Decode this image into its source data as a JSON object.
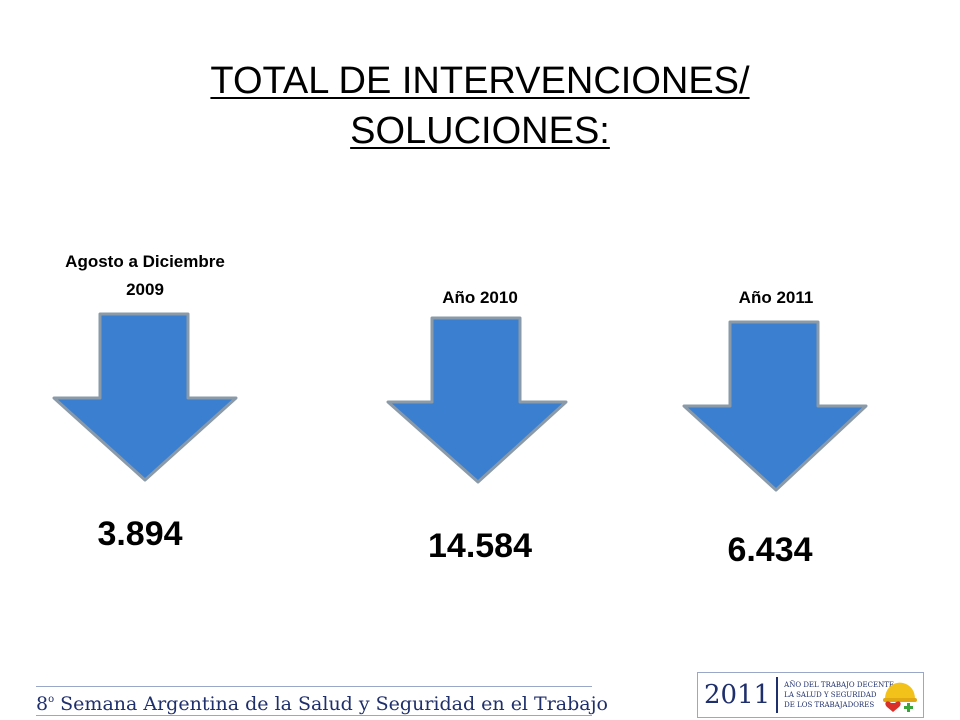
{
  "title": {
    "line1": "TOTAL DE INTERVENCIONES/",
    "line2": "SOLUCIONES:"
  },
  "columns": [
    {
      "period_line1": "Agosto a Diciembre",
      "period_line2": "2009",
      "value": "3.894",
      "arrow_color": "#3b7fd1"
    },
    {
      "period_line1": "Año  2010",
      "period_line2": "",
      "value": "14.584",
      "arrow_color": "#3b7fd1"
    },
    {
      "period_line1": "Año  2011",
      "period_line2": "",
      "value": "6.434",
      "arrow_color": "#3b7fd1"
    }
  ],
  "footer": {
    "ordinal": "8",
    "ordinal_sup": "o",
    "text": " Semana Argentina de la Salud y Seguridad en el Trabajo"
  },
  "logo": {
    "year": "2011",
    "line1": "AÑO DEL TRABAJO DECENTE,",
    "line2": "LA SALUD Y SEGURIDAD",
    "line3": "DE LOS TRABAJADORES"
  },
  "colors": {
    "arrow_fill": "#3b7fd1",
    "arrow_stroke": "#8a9aa8",
    "footer_text": "#1f2f6b"
  }
}
